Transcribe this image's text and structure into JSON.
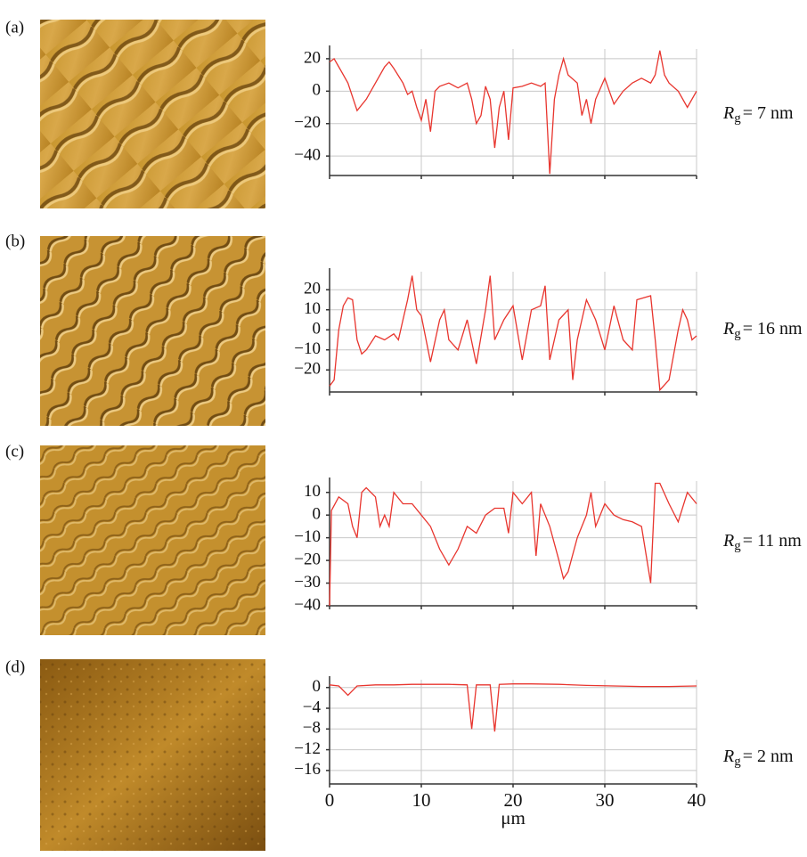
{
  "chart_data": [
    {
      "type": "line",
      "panel_label": "(a)",
      "annotation": {
        "symbol": "R",
        "subscript": "g",
        "text": "= 7 nm"
      },
      "series": [
        {
          "color": "#e8352e"
        }
      ],
      "x": [
        0,
        0.5,
        1,
        2,
        3,
        4,
        5,
        6,
        6.5,
        7,
        8,
        8.5,
        9,
        9.5,
        10,
        10.5,
        11,
        11.5,
        12,
        13,
        14,
        15,
        15.5,
        16,
        16.5,
        17,
        17.5,
        18,
        18.5,
        19,
        19.5,
        20,
        21,
        22,
        23,
        23.5,
        24,
        24.5,
        25,
        25.5,
        26,
        27,
        27.5,
        28,
        28.5,
        29,
        30,
        30.5,
        31,
        32,
        33,
        34,
        35,
        35.5,
        36,
        36.5,
        37,
        38,
        39,
        40
      ],
      "values": [
        18,
        20,
        15,
        5,
        -12,
        -5,
        5,
        15,
        18,
        14,
        5,
        -2,
        0,
        -10,
        -18,
        -5,
        -25,
        0,
        3,
        5,
        2,
        5,
        -5,
        -20,
        -15,
        3,
        -5,
        -35,
        -10,
        0,
        -30,
        2,
        3,
        5,
        3,
        5,
        -51,
        -5,
        10,
        20,
        10,
        5,
        -15,
        -5,
        -20,
        -5,
        8,
        0,
        -8,
        0,
        5,
        8,
        5,
        10,
        25,
        10,
        5,
        0,
        -10,
        0
      ],
      "xlim": [
        0,
        40
      ],
      "xticks": [
        0,
        10,
        20,
        30,
        40
      ],
      "show_xtick_labels": false,
      "ylim": [
        -52,
        26
      ],
      "yticks": [
        20,
        0,
        {
          "value": -20,
          "label": "−20"
        },
        {
          "value": -40,
          "label": "−40"
        }
      ],
      "grid": true
    },
    {
      "type": "line",
      "panel_label": "(b)",
      "annotation": {
        "symbol": "R",
        "subscript": "g",
        "text": "= 16 nm"
      },
      "series": [
        {
          "color": "#e8352e"
        }
      ],
      "x": [
        0,
        0.5,
        1,
        1.5,
        2,
        2.5,
        3,
        3.5,
        4,
        5,
        6,
        7,
        7.5,
        8,
        8.5,
        9,
        9.5,
        10,
        11,
        12,
        12.5,
        13,
        14,
        15,
        16,
        17,
        17.5,
        18,
        19,
        20,
        21,
        22,
        23,
        23.5,
        24,
        25,
        26,
        26.5,
        27,
        28,
        29,
        30,
        31,
        32,
        33,
        33.5,
        35,
        35.5,
        36,
        37,
        38,
        38.5,
        39,
        39.5,
        40
      ],
      "values": [
        -28,
        -25,
        0,
        12,
        16,
        15,
        -5,
        -12,
        -10,
        -3,
        -5,
        -2,
        -5,
        5,
        15,
        27,
        10,
        7,
        -16,
        5,
        10,
        -5,
        -10,
        5,
        -17,
        10,
        27,
        -5,
        5,
        12,
        -15,
        10,
        12,
        22,
        -15,
        5,
        10,
        -25,
        -5,
        15,
        5,
        -10,
        12,
        -5,
        -10,
        15,
        17,
        -5,
        -30,
        -25,
        0,
        10,
        5,
        -5,
        -3
      ],
      "xlim": [
        0,
        40
      ],
      "xticks": [
        0,
        10,
        20,
        30,
        40
      ],
      "show_xtick_labels": false,
      "ylim": [
        -31,
        29
      ],
      "yticks": [
        20,
        10,
        0,
        {
          "value": -10,
          "label": "−10"
        },
        {
          "value": -20,
          "label": "−20"
        }
      ],
      "grid": true
    },
    {
      "type": "line",
      "panel_label": "(c)",
      "annotation": {
        "symbol": "R",
        "subscript": "g",
        "text": "= 11 nm"
      },
      "series": [
        {
          "color": "#e8352e"
        }
      ],
      "x": [
        0,
        0.2,
        1,
        2,
        2.5,
        3,
        3.5,
        4,
        5,
        5.5,
        6,
        6.5,
        7,
        8,
        9,
        10,
        11,
        12,
        13,
        14,
        14.5,
        15,
        16,
        17,
        18,
        19,
        19.5,
        20,
        21,
        22,
        22.5,
        23,
        24,
        25,
        25.5,
        26,
        27,
        28,
        28.5,
        29,
        30,
        31,
        32,
        33,
        34,
        35,
        35.5,
        36,
        37,
        38,
        39,
        40
      ],
      "values": [
        -40,
        2,
        8,
        5,
        -5,
        -10,
        10,
        12,
        8,
        -5,
        0,
        -5,
        10,
        5,
        5,
        0,
        -5,
        -15,
        -22,
        -15,
        -10,
        -5,
        -8,
        0,
        3,
        3,
        -8,
        10,
        5,
        10,
        -18,
        5,
        -5,
        -20,
        -28,
        -25,
        -10,
        0,
        10,
        -5,
        5,
        0,
        -2,
        -3,
        -5,
        -30,
        14,
        14,
        5,
        -3,
        10,
        5
      ],
      "xlim": [
        0,
        40
      ],
      "xticks": [
        0,
        10,
        20,
        30,
        40
      ],
      "show_xtick_labels": false,
      "ylim": [
        -40,
        15
      ],
      "yticks": [
        10,
        0,
        {
          "value": -10,
          "label": "−10"
        },
        {
          "value": -20,
          "label": "−20"
        },
        {
          "value": -30,
          "label": "−30"
        },
        {
          "value": -40,
          "label": "−40"
        }
      ],
      "grid": true
    },
    {
      "type": "line",
      "panel_label": "(d)",
      "annotation": {
        "symbol": "R",
        "subscript": "g",
        "text": "= 2 nm"
      },
      "series": [
        {
          "color": "#e8352e"
        }
      ],
      "x": [
        0,
        1,
        2,
        3,
        5,
        7,
        9,
        11,
        13,
        15,
        15.5,
        16,
        17.5,
        18,
        18.5,
        20,
        22,
        25,
        28,
        31,
        34,
        37,
        40
      ],
      "values": [
        0.5,
        0.3,
        -1.5,
        0.3,
        0.5,
        0.5,
        0.6,
        0.6,
        0.6,
        0.5,
        -8,
        0.5,
        0.5,
        -8.5,
        0.6,
        0.7,
        0.7,
        0.6,
        0.4,
        0.3,
        0.2,
        0.2,
        0.3
      ],
      "xlim": [
        0,
        40
      ],
      "xticks": [
        0,
        10,
        20,
        30,
        40
      ],
      "show_xtick_labels": true,
      "x_label": "μm",
      "ylim": [
        -18.6,
        1.5
      ],
      "yticks": [
        0,
        {
          "value": -4,
          "label": "−4"
        },
        {
          "value": -8,
          "label": "−8"
        },
        {
          "value": -12,
          "label": "−12"
        },
        {
          "value": -16,
          "label": "−16"
        }
      ],
      "grid": true
    }
  ]
}
